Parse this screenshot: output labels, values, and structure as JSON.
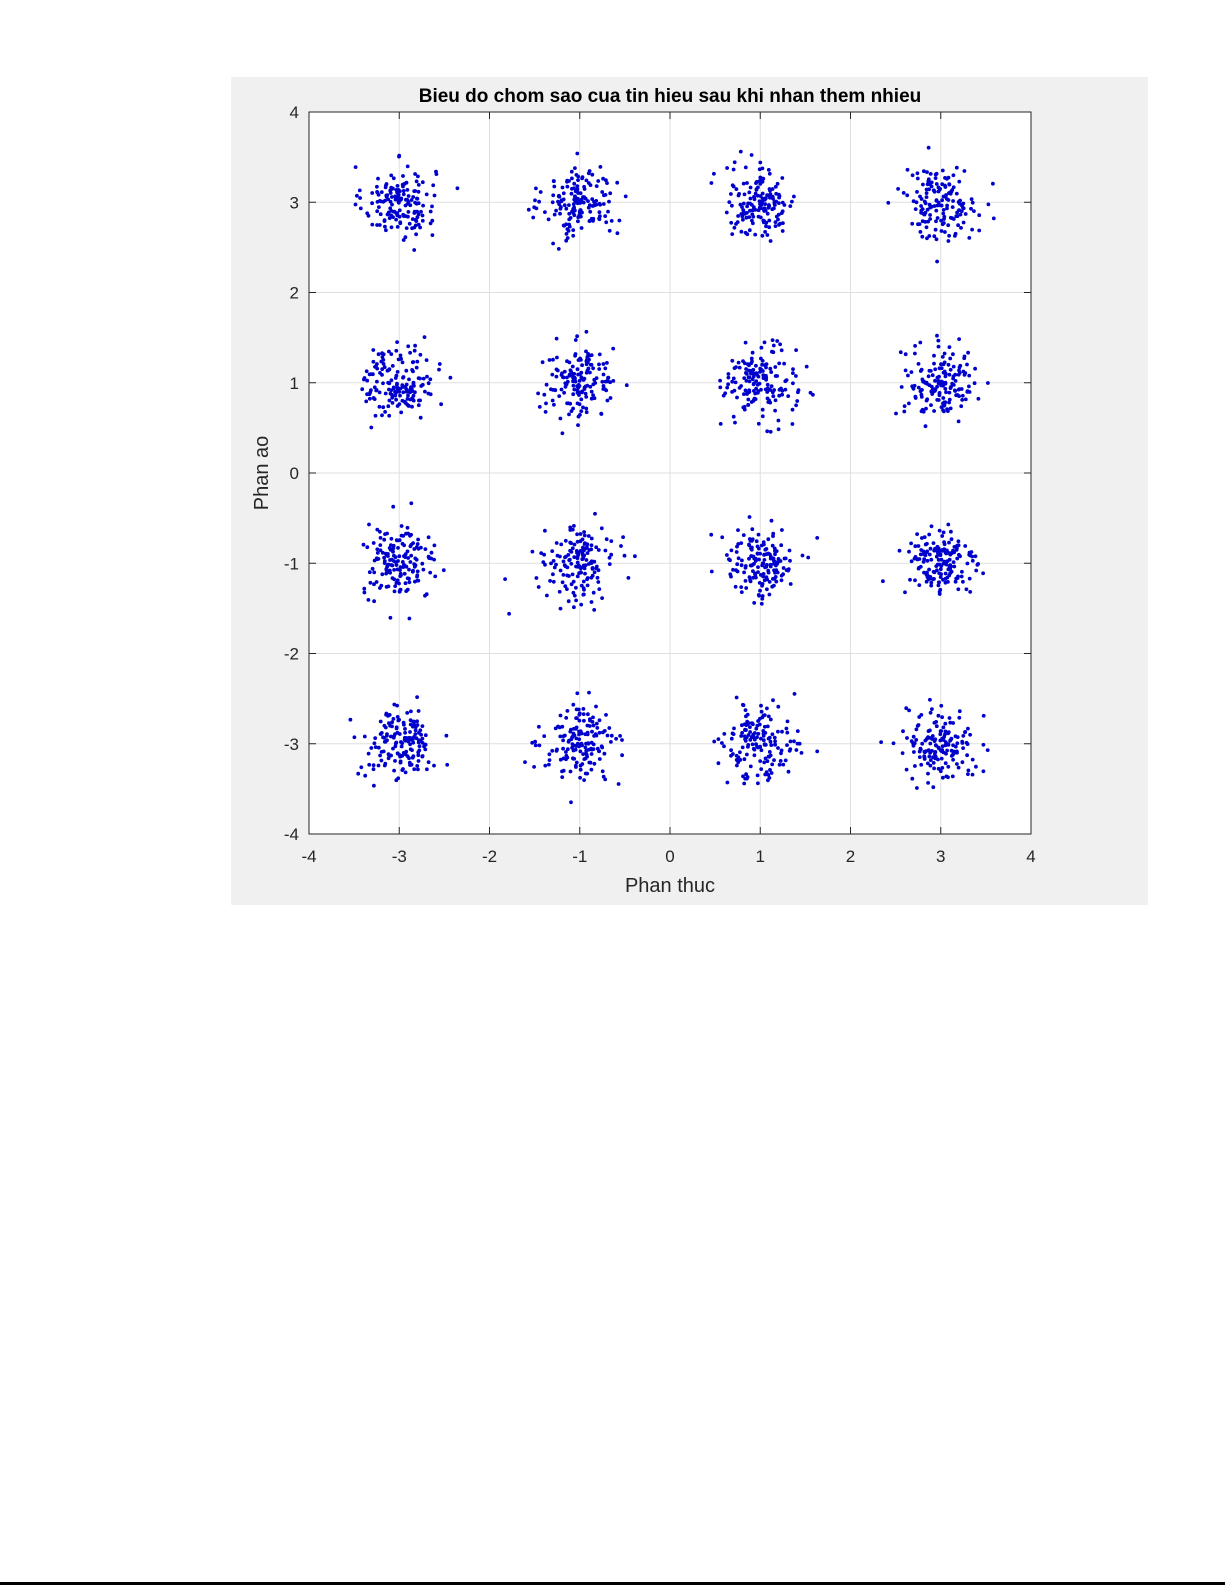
{
  "colors": {
    "figure_background": "#f0f0f0",
    "axes_background": "#ffffff",
    "marker": "#0000cd",
    "grid": "#dfdfdf",
    "axis_line": "#262626"
  },
  "chart_data": {
    "type": "scatter",
    "title": "Bieu do chom sao cua tin hieu sau khi nhan them nhieu",
    "xlabel": "Phan thuc",
    "ylabel": "Phan ao",
    "xlim": [
      -4,
      4
    ],
    "ylim": [
      -4,
      4
    ],
    "xticks": [
      -4,
      -3,
      -2,
      -1,
      0,
      1,
      2,
      3,
      4
    ],
    "yticks": [
      -4,
      -3,
      -2,
      -1,
      0,
      1,
      2,
      3,
      4
    ],
    "xtick_labels": [
      "-4",
      "-3",
      "-2",
      "-1",
      "0",
      "1",
      "2",
      "3",
      "4"
    ],
    "ytick_labels": [
      "-4",
      "-3",
      "-2",
      "-1",
      "0",
      "1",
      "2",
      "3",
      "4"
    ],
    "grid": true,
    "legend": "none",
    "marker": "dot",
    "constellation": "16-QAM",
    "cluster_centers": [
      [
        -3,
        3
      ],
      [
        -1,
        3
      ],
      [
        1,
        3
      ],
      [
        3,
        3
      ],
      [
        -3,
        1
      ],
      [
        -1,
        1
      ],
      [
        1,
        1
      ],
      [
        3,
        1
      ],
      [
        -3,
        -1
      ],
      [
        -1,
        -1
      ],
      [
        1,
        -1
      ],
      [
        3,
        -1
      ],
      [
        -3,
        -3
      ],
      [
        -1,
        -3
      ],
      [
        1,
        -3
      ],
      [
        3,
        -3
      ]
    ],
    "points_per_cluster": 160,
    "noise_std": 0.2,
    "seed": 20240611
  }
}
